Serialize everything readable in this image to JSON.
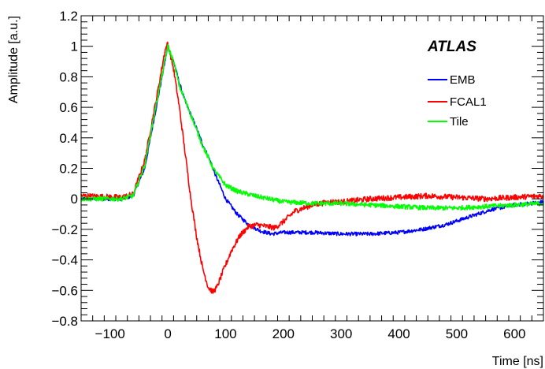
{
  "chart_data": {
    "type": "line",
    "title": "",
    "xlabel": "Time [ns]",
    "ylabel": "Amplitude [a.u.]",
    "xlim": [
      -150,
      650
    ],
    "ylim": [
      -0.8,
      1.2
    ],
    "xticks": [
      -100,
      0,
      100,
      200,
      300,
      400,
      500,
      600
    ],
    "yticks": [
      -0.8,
      -0.6,
      -0.4,
      -0.2,
      0,
      0.2,
      0.4,
      0.6,
      0.8,
      1,
      1.2
    ],
    "xtick_labels": [
      "−100",
      "0",
      "100",
      "200",
      "300",
      "400",
      "500",
      "600"
    ],
    "ytick_labels": [
      "−0.8",
      "−0.6",
      "−0.4",
      "−0.2",
      "0",
      "0.2",
      "0.4",
      "0.6",
      "0.8",
      "1",
      "1.2"
    ],
    "grid": false,
    "annotation": "ATLAS",
    "legend": {
      "placement": "top-right"
    },
    "series": [
      {
        "name": "EMB",
        "color": "#0000ff",
        "noise": 0.012,
        "points": [
          [
            -150,
            0
          ],
          [
            -80,
            0
          ],
          [
            -60,
            0.02
          ],
          [
            -40,
            0.2
          ],
          [
            -20,
            0.6
          ],
          [
            0,
            1.0
          ],
          [
            10,
            0.9
          ],
          [
            20,
            0.76
          ],
          [
            30,
            0.64
          ],
          [
            40,
            0.55
          ],
          [
            50,
            0.46
          ],
          [
            60,
            0.36
          ],
          [
            70,
            0.28
          ],
          [
            80,
            0.18
          ],
          [
            90,
            0.09
          ],
          [
            100,
            0.0
          ],
          [
            120,
            -0.1
          ],
          [
            140,
            -0.17
          ],
          [
            160,
            -0.21
          ],
          [
            180,
            -0.23
          ],
          [
            200,
            -0.22
          ],
          [
            250,
            -0.22
          ],
          [
            300,
            -0.23
          ],
          [
            350,
            -0.23
          ],
          [
            400,
            -0.22
          ],
          [
            440,
            -0.2
          ],
          [
            480,
            -0.17
          ],
          [
            520,
            -0.12
          ],
          [
            560,
            -0.07
          ],
          [
            600,
            -0.04
          ],
          [
            650,
            -0.02
          ]
        ]
      },
      {
        "name": "FCAL1",
        "color": "#ff0000",
        "noise": 0.018,
        "points": [
          [
            -150,
            0.02
          ],
          [
            -80,
            0.01
          ],
          [
            -60,
            0.03
          ],
          [
            -40,
            0.25
          ],
          [
            -20,
            0.65
          ],
          [
            -5,
            0.97
          ],
          [
            0,
            1.02
          ],
          [
            10,
            0.85
          ],
          [
            20,
            0.6
          ],
          [
            30,
            0.3
          ],
          [
            40,
            0.0
          ],
          [
            50,
            -0.25
          ],
          [
            60,
            -0.45
          ],
          [
            70,
            -0.58
          ],
          [
            78,
            -0.61
          ],
          [
            85,
            -0.58
          ],
          [
            95,
            -0.48
          ],
          [
            110,
            -0.34
          ],
          [
            125,
            -0.24
          ],
          [
            140,
            -0.18
          ],
          [
            155,
            -0.17
          ],
          [
            170,
            -0.18
          ],
          [
            185,
            -0.19
          ],
          [
            200,
            -0.15
          ],
          [
            220,
            -0.08
          ],
          [
            250,
            -0.04
          ],
          [
            280,
            -0.02
          ],
          [
            300,
            -0.02
          ],
          [
            350,
            0.0
          ],
          [
            400,
            0.01
          ],
          [
            450,
            0.02
          ],
          [
            500,
            0.01
          ],
          [
            550,
            0.0
          ],
          [
            600,
            0.01
          ],
          [
            650,
            0.02
          ]
        ]
      },
      {
        "name": "Tile",
        "color": "#00ff00",
        "noise": 0.015,
        "points": [
          [
            -150,
            0
          ],
          [
            -80,
            0
          ],
          [
            -60,
            0.02
          ],
          [
            -40,
            0.22
          ],
          [
            -20,
            0.62
          ],
          [
            0,
            1.0
          ],
          [
            10,
            0.9
          ],
          [
            20,
            0.74
          ],
          [
            40,
            0.55
          ],
          [
            60,
            0.35
          ],
          [
            80,
            0.19
          ],
          [
            100,
            0.09
          ],
          [
            120,
            0.05
          ],
          [
            150,
            0.02
          ],
          [
            200,
            -0.02
          ],
          [
            250,
            -0.03
          ],
          [
            300,
            -0.03
          ],
          [
            350,
            -0.04
          ],
          [
            400,
            -0.05
          ],
          [
            450,
            -0.06
          ],
          [
            500,
            -0.06
          ],
          [
            550,
            -0.05
          ],
          [
            600,
            -0.04
          ],
          [
            650,
            -0.03
          ]
        ]
      }
    ]
  }
}
